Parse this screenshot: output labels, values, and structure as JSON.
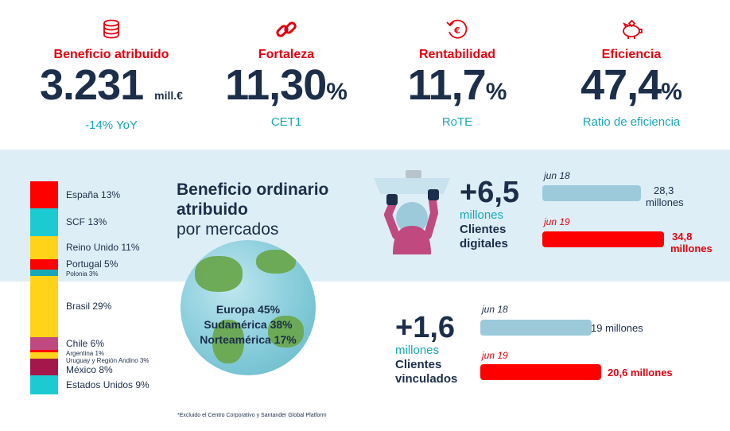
{
  "kpis": [
    {
      "label": "Beneficio atribuido",
      "value": "3.231",
      "unit": "mill.€",
      "sub": "-14% YoY"
    },
    {
      "label": "Fortaleza",
      "value": "11,30",
      "unit": "%",
      "sub": "CET1"
    },
    {
      "label": "Rentabilidad",
      "value": "11,7",
      "unit": "%",
      "sub": "RoTE"
    },
    {
      "label": "Eficiencia",
      "value": "47,4",
      "unit": "%",
      "sub": "Ratio de eficiencia"
    }
  ],
  "icons": [
    "coins-icon",
    "chain-link-icon",
    "euro-cycle-icon",
    "piggy-bank-icon",
    "person-tablet-icon"
  ],
  "markets": {
    "title_bold": "Beneficio ordinario atribuido",
    "title_regular": "por mercados",
    "segments": [
      {
        "label": "España 13%",
        "pct": 13,
        "color": "#ff0000"
      },
      {
        "label": "SCF 13%",
        "pct": 13,
        "color": "#1ccbd1"
      },
      {
        "label": "Reino Unido 11%",
        "pct": 11,
        "color": "#ffd31a"
      },
      {
        "label": "Portugal 5%",
        "pct": 5,
        "color": "#ff0000"
      },
      {
        "label": "Polonia 3%",
        "pct": 3,
        "color": "#18a7b6"
      },
      {
        "label": "Brasil 29%",
        "pct": 29,
        "color": "#ffd31a"
      },
      {
        "label": "Chile 6%",
        "pct": 6,
        "color": "#c04a7f"
      },
      {
        "label": "Argentina 1%",
        "pct": 1,
        "color": "#ff0000"
      },
      {
        "label": "Uruguay y Región Andino 3%",
        "pct": 3,
        "color": "#ffd31a"
      },
      {
        "label": "México 8%",
        "pct": 8,
        "color": "#a4174a"
      },
      {
        "label": "Estados Unidos 9%",
        "pct": 9,
        "color": "#1ccbd1"
      }
    ],
    "regions": [
      "Europa 45%",
      "Sudamérica 38%",
      "Norteamérica 17%"
    ],
    "footnote": "*Excluido el Centro Corporativo y Santander Global Platform"
  },
  "digital": {
    "delta": "+6,5",
    "unit": "millones",
    "label_1": "Clientes",
    "label_2": "digitales",
    "prev_period": "jun 18",
    "prev_value_1": "28,3",
    "prev_value_2": "millones",
    "prev": 28.3,
    "curr_period": "jun 19",
    "curr_value_1": "34,8",
    "curr_value_2": "millones",
    "curr": 34.8
  },
  "linked": {
    "delta": "+1,6",
    "unit": "millones",
    "label_1": "Clientes",
    "label_2": "vinculados",
    "prev_period": "jun 18",
    "prev_value": "19 millones",
    "prev": 19,
    "curr_period": "jun 19",
    "curr_value": "20,6 millones",
    "curr": 20.6
  },
  "colors": {
    "red": "#e3000f",
    "navy": "#1c2e4a",
    "teal": "#18a7b6",
    "band": "#deeef6",
    "bar_blue": "#9ccadb"
  }
}
